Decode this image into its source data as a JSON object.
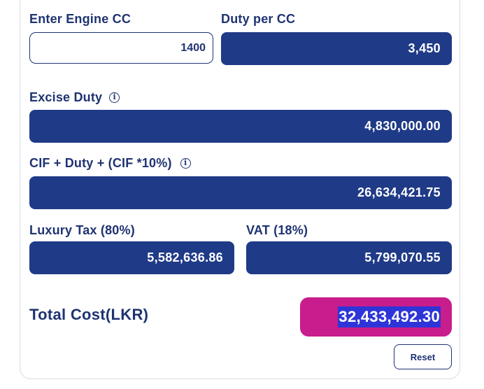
{
  "engine_cc": {
    "label": "Enter Engine CC",
    "value": "1400"
  },
  "duty_per_cc": {
    "label": "Duty per CC",
    "value": "3,450"
  },
  "excise_duty": {
    "label": "Excise Duty",
    "value": "4,830,000.00",
    "icon": "info-icon"
  },
  "cif_total": {
    "label": "CIF + Duty + (CIF *10%)",
    "value": "26,634,421.75",
    "icon": "info-icon"
  },
  "luxury_tax": {
    "label": "Luxury Tax (80%)",
    "value": "5,582,636.86"
  },
  "vat": {
    "label": "VAT (18%)",
    "value": "5,799,070.55"
  },
  "total": {
    "label": "Total Cost(LKR)",
    "value": "32,433,492.30"
  },
  "reset_label": "Reset",
  "colors": {
    "primary": "#1f3a87",
    "text": "#1f3372",
    "accent": "#c81d8d",
    "selection": "#2d35d8"
  }
}
